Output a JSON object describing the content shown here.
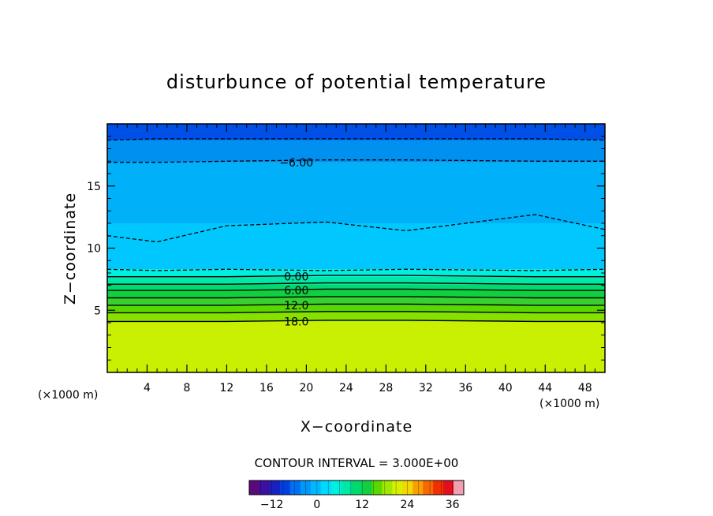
{
  "chart_data": {
    "type": "heatmap",
    "title": "disturbunce of potential temperature",
    "xlabel": "X−coordinate",
    "ylabel": "Z−coordinate",
    "x_unit_label": "(×1000 m)",
    "y_unit_label": "(×1000 m)",
    "xlim": [
      0,
      50
    ],
    "ylim": [
      0,
      20
    ],
    "x_ticks": [
      4,
      8,
      12,
      16,
      20,
      24,
      28,
      32,
      36,
      40,
      44,
      48
    ],
    "y_ticks": [
      5,
      10,
      15
    ],
    "x_tick_labels": [
      "4",
      "8",
      "12",
      "16",
      "20",
      "24",
      "28",
      "32",
      "36",
      "40",
      "44",
      "48"
    ],
    "y_tick_labels": [
      "5",
      "10",
      "15"
    ],
    "contour_interval_text": "CONTOUR INTERVAL = 3.000E+00",
    "colorbar": {
      "min": -18,
      "max": 39,
      "tick_values": [
        -12,
        0,
        12,
        24,
        36
      ],
      "tick_labels": [
        "−12",
        "0",
        "12",
        "24",
        "36"
      ]
    },
    "contour_labels": [
      {
        "text": "−6.00",
        "x": 19,
        "z": 16.9
      },
      {
        "text": "0.00",
        "x": 19,
        "z": 7.7
      },
      {
        "text": "6.00",
        "x": 19,
        "z": 6.6
      },
      {
        "text": "12.0",
        "x": 19,
        "z": 5.4
      },
      {
        "text": "18.0",
        "x": 19,
        "z": 4.1
      }
    ],
    "contour_lines": [
      {
        "level": -9,
        "style": "dashed",
        "z": [
          18.7,
          18.8,
          18.8,
          18.8,
          18.8,
          18.8,
          18.7
        ]
      },
      {
        "level": -6,
        "style": "dashed",
        "z": [
          16.9,
          16.9,
          17.0,
          17.1,
          17.1,
          17.0,
          17.0
        ]
      },
      {
        "level": -3,
        "style": "dashed",
        "z": [
          11.0,
          10.5,
          11.8,
          12.1,
          11.4,
          12.7,
          11.5
        ]
      },
      {
        "level": -1,
        "style": "dashed",
        "z": [
          8.3,
          8.2,
          8.3,
          8.2,
          8.3,
          8.2,
          8.3
        ]
      },
      {
        "level": 0,
        "style": "solid",
        "z": [
          7.7,
          7.7,
          7.7,
          7.8,
          7.8,
          7.7,
          7.7
        ]
      },
      {
        "level": 3,
        "style": "solid",
        "z": [
          7.1,
          7.1,
          7.1,
          7.2,
          7.2,
          7.1,
          7.1
        ]
      },
      {
        "level": 6,
        "style": "solid",
        "z": [
          6.6,
          6.6,
          6.6,
          6.7,
          6.7,
          6.6,
          6.6
        ]
      },
      {
        "level": 9,
        "style": "solid",
        "z": [
          6.0,
          6.0,
          6.0,
          6.1,
          6.1,
          6.0,
          6.0
        ]
      },
      {
        "level": 12,
        "style": "solid",
        "z": [
          5.4,
          5.4,
          5.4,
          5.5,
          5.5,
          5.4,
          5.4
        ]
      },
      {
        "level": 15,
        "style": "solid",
        "z": [
          4.8,
          4.8,
          4.8,
          4.9,
          4.9,
          4.8,
          4.8
        ]
      },
      {
        "level": 18,
        "style": "solid",
        "z": [
          4.1,
          4.1,
          4.1,
          4.2,
          4.2,
          4.1,
          4.1
        ]
      }
    ],
    "contour_x": [
      0,
      5,
      12,
      22,
      30,
      43,
      50
    ],
    "bands": [
      {
        "z0": 0.0,
        "z1": 4.1,
        "color": "#c8f000"
      },
      {
        "z0": 4.1,
        "z1": 4.8,
        "color": "#88e000"
      },
      {
        "z0": 4.8,
        "z1": 5.4,
        "color": "#58d800"
      },
      {
        "z0": 5.4,
        "z1": 6.0,
        "color": "#38d030"
      },
      {
        "z0": 6.0,
        "z1": 6.6,
        "color": "#10d040"
      },
      {
        "z0": 6.6,
        "z1": 7.1,
        "color": "#00d870"
      },
      {
        "z0": 7.1,
        "z1": 7.7,
        "color": "#00e8a8"
      },
      {
        "z0": 7.7,
        "z1": 8.3,
        "color": "#00f0e0"
      },
      {
        "z0": 8.3,
        "z1": 12.0,
        "color": "#00c8ff"
      },
      {
        "z0": 12.0,
        "z1": 16.9,
        "color": "#00b0f8"
      },
      {
        "z0": 16.9,
        "z1": 18.7,
        "color": "#0090f0"
      },
      {
        "z0": 18.7,
        "z1": 20.0,
        "color": "#0050e8"
      }
    ],
    "colorbar_colors": [
      "#5a0a7a",
      "#3a10a0",
      "#1a20c0",
      "#0040e0",
      "#0070f0",
      "#0098f8",
      "#00b8ff",
      "#00d8ff",
      "#00f0e0",
      "#00e8a8",
      "#00d870",
      "#10d040",
      "#58d800",
      "#a0e800",
      "#d8f000",
      "#f0d800",
      "#f8a000",
      "#f86800",
      "#f03000",
      "#e01020",
      "#f0a0b0"
    ]
  }
}
